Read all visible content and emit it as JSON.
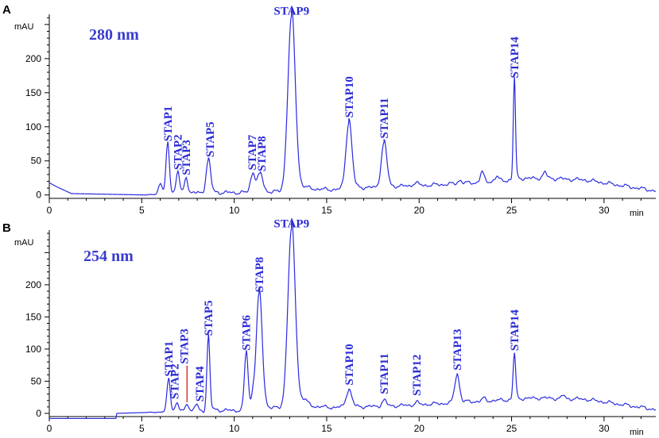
{
  "chart_data": [
    {
      "type": "line",
      "panel_label": "A",
      "title": "280 nm",
      "ylabel": "mAU",
      "xlabel": "min",
      "xlim": [
        0,
        32.8
      ],
      "ylim": [
        -5,
        265
      ],
      "xticks": [
        0,
        5,
        10,
        15,
        20,
        25,
        30
      ],
      "yticks": [
        0,
        50,
        100,
        150,
        200
      ],
      "grid": false,
      "color": "#2a2ae0",
      "baseline": [
        [
          0,
          18
        ],
        [
          0.4,
          12
        ],
        [
          1.2,
          2
        ],
        [
          5.2,
          0
        ],
        [
          6.5,
          2
        ],
        [
          12,
          4
        ],
        [
          14.5,
          6
        ],
        [
          19,
          12
        ],
        [
          23,
          18
        ],
        [
          26.5,
          25
        ],
        [
          29,
          22
        ],
        [
          32.8,
          6
        ]
      ],
      "peaks": [
        {
          "label": "STAP1",
          "rt": 6.4,
          "height": 72,
          "width": 0.09
        },
        {
          "label": "STAP2",
          "rt": 6.95,
          "height": 30,
          "width": 0.09
        },
        {
          "label": "STAP3",
          "rt": 7.4,
          "height": 22,
          "width": 0.09
        },
        {
          "label": "STAP5",
          "rt": 8.6,
          "height": 48,
          "width": 0.12
        },
        {
          "label": "STAP7",
          "rt": 11.0,
          "height": 28,
          "width": 0.12
        },
        {
          "label": "STAP8",
          "rt": 11.4,
          "height": 26,
          "width": 0.15
        },
        {
          "label": "STAP9",
          "rt": 13.1,
          "height": 255,
          "width": 0.2
        },
        {
          "label": "STAP10",
          "rt": 16.2,
          "height": 98,
          "width": 0.16
        },
        {
          "label": "STAP11",
          "rt": 18.1,
          "height": 65,
          "width": 0.15
        },
        {
          "label": "STAP14",
          "rt": 25.15,
          "height": 142,
          "width": 0.06
        }
      ],
      "minor_peaks": [
        [
          6.0,
          15,
          0.1
        ],
        [
          23.4,
          14,
          0.1
        ],
        [
          24.2,
          6,
          0.1
        ],
        [
          26.8,
          8,
          0.1
        ],
        [
          19.8,
          4,
          0.15
        ],
        [
          22.2,
          5,
          0.1
        ]
      ]
    },
    {
      "type": "line",
      "panel_label": "B",
      "title": "254 nm",
      "ylabel": "mAU",
      "xlabel": "min",
      "xlim": [
        0,
        32.8
      ],
      "ylim": [
        -5,
        285
      ],
      "xticks": [
        0,
        5,
        10,
        15,
        20,
        25,
        30
      ],
      "yticks": [
        0,
        50,
        100,
        150,
        200
      ],
      "grid": false,
      "color": "#2a2ae0",
      "baseline": [
        [
          0,
          -8
        ],
        [
          3.6,
          -8
        ],
        [
          3.65,
          0
        ],
        [
          6,
          2
        ],
        [
          9,
          4
        ],
        [
          13,
          6
        ],
        [
          19,
          12
        ],
        [
          23,
          18
        ],
        [
          26.5,
          24
        ],
        [
          29,
          22
        ],
        [
          32.8,
          6
        ]
      ],
      "peaks": [
        {
          "label": "STAP1",
          "rt": 6.45,
          "height": 50,
          "width": 0.09
        },
        {
          "label": "STAP2",
          "rt": 6.9,
          "height": 12,
          "width": 0.09
        },
        {
          "label": "STAP3",
          "rt": 7.45,
          "height": 12,
          "width": 0.09
        },
        {
          "label": "STAP4",
          "rt": 7.95,
          "height": 10,
          "width": 0.09
        },
        {
          "label": "STAP5",
          "rt": 8.6,
          "height": 112,
          "width": 0.08
        },
        {
          "label": "STAP6",
          "rt": 10.65,
          "height": 88,
          "width": 0.1
        },
        {
          "label": "STAP8",
          "rt": 11.35,
          "height": 178,
          "width": 0.16
        },
        {
          "label": "STAP9",
          "rt": 13.1,
          "height": 278,
          "width": 0.2
        },
        {
          "label": "STAP10",
          "rt": 16.2,
          "height": 27,
          "width": 0.15
        },
        {
          "label": "STAP11",
          "rt": 18.1,
          "height": 9,
          "width": 0.12
        },
        {
          "label": "STAP12",
          "rt": 19.85,
          "height": 4,
          "width": 0.1
        },
        {
          "label": "STAP13",
          "rt": 22.05,
          "height": 43,
          "width": 0.13
        },
        {
          "label": "STAP14",
          "rt": 25.15,
          "height": 68,
          "width": 0.07
        }
      ],
      "minor_peaks": [
        [
          11.0,
          18,
          0.08
        ],
        [
          13.8,
          8,
          0.15
        ],
        [
          27.8,
          5,
          0.08
        ],
        [
          23.5,
          4,
          0.1
        ]
      ]
    }
  ]
}
